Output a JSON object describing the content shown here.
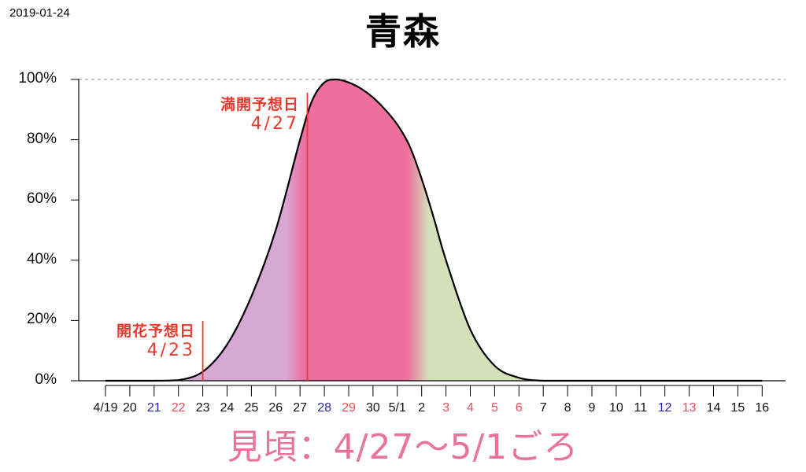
{
  "header": {
    "date_stamp": "2019-01-24",
    "title": "青森"
  },
  "footer": {
    "viewing_period": "見頃：4/27〜5/1ごろ"
  },
  "annotations": {
    "bloom": {
      "label": "開花予想日",
      "date": "4/23"
    },
    "full_bloom": {
      "label": "満開予想日",
      "date": "4/27"
    }
  },
  "colors": {
    "curve": "#000000",
    "bloom_zone": "#d8a8d4",
    "peak_zone": "#ee6e9e",
    "after_zone": "#d4e0b8",
    "annotation": "#e83a2e",
    "weekend_blue": "#2828a8",
    "holiday_red": "#e8505a",
    "viewing_text": "#e8749a"
  },
  "chart_data": {
    "type": "area",
    "title": "青森",
    "xlabel": "",
    "ylabel": "",
    "ylim": [
      0,
      100
    ],
    "y_ticks": [
      "0%",
      "20%",
      "40%",
      "60%",
      "80%",
      "100%"
    ],
    "x_tick_labels": [
      {
        "label": "4/19",
        "color": "black"
      },
      {
        "label": "20",
        "color": "black"
      },
      {
        "label": "21",
        "color": "blue"
      },
      {
        "label": "22",
        "color": "red"
      },
      {
        "label": "23",
        "color": "black"
      },
      {
        "label": "24",
        "color": "black"
      },
      {
        "label": "25",
        "color": "black"
      },
      {
        "label": "26",
        "color": "black"
      },
      {
        "label": "27",
        "color": "black"
      },
      {
        "label": "28",
        "color": "blue"
      },
      {
        "label": "29",
        "color": "red"
      },
      {
        "label": "30",
        "color": "black"
      },
      {
        "label": "5/1",
        "color": "black"
      },
      {
        "label": "2",
        "color": "black"
      },
      {
        "label": "3",
        "color": "red"
      },
      {
        "label": "4",
        "color": "red"
      },
      {
        "label": "5",
        "color": "red"
      },
      {
        "label": "6",
        "color": "red"
      },
      {
        "label": "7",
        "color": "black"
      },
      {
        "label": "8",
        "color": "black"
      },
      {
        "label": "9",
        "color": "black"
      },
      {
        "label": "10",
        "color": "black"
      },
      {
        "label": "11",
        "color": "black"
      },
      {
        "label": "12",
        "color": "blue"
      },
      {
        "label": "13",
        "color": "red"
      },
      {
        "label": "14",
        "color": "black"
      },
      {
        "label": "15",
        "color": "black"
      },
      {
        "label": "16",
        "color": "black"
      }
    ],
    "series": [
      {
        "x": [
          0,
          1,
          2,
          3,
          4,
          5,
          6,
          7,
          8,
          8.5,
          9,
          9.5,
          10,
          10.5,
          11,
          11.5,
          12,
          12.5,
          13,
          13.5,
          14,
          15,
          16,
          17,
          18,
          19,
          20,
          21,
          22,
          23,
          24,
          25,
          26,
          27
        ],
        "values": [
          0,
          0,
          0,
          0.2,
          3,
          12,
          28,
          50,
          80,
          93,
          99,
          100,
          99,
          97,
          94,
          90,
          85,
          78,
          67,
          54,
          40,
          17,
          5,
          1,
          0,
          0,
          0,
          0,
          0,
          0,
          0,
          0,
          0,
          0
        ]
      }
    ],
    "vertical_markers": [
      {
        "x": 4,
        "annotation": "開花予想日 4/23"
      },
      {
        "x": 8.3,
        "annotation": "満開予想日 4/27"
      }
    ],
    "grid": false,
    "reference_line": {
      "y": 100,
      "style": "dashed"
    }
  }
}
